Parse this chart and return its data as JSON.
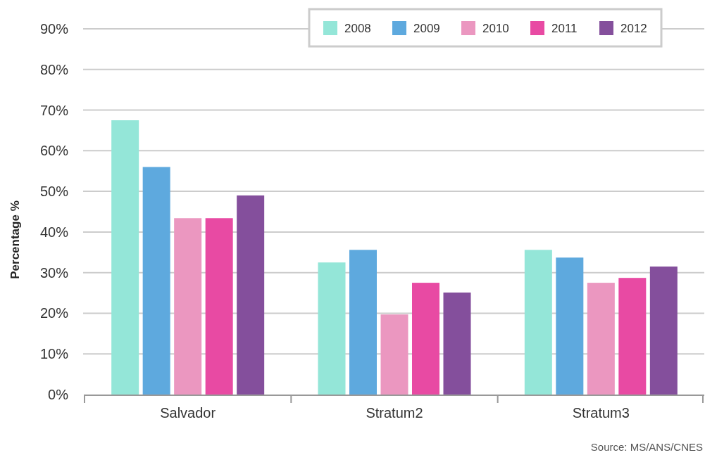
{
  "chart_data": {
    "type": "bar",
    "ylabel": "Percentage %",
    "categories": [
      "Salvador",
      "Stratum2",
      "Stratum3"
    ],
    "series": [
      {
        "name": "2008",
        "color": "#94e6d8",
        "values": [
          67.5,
          32.5,
          35.6
        ]
      },
      {
        "name": "2009",
        "color": "#5ea9de",
        "values": [
          56,
          35.6,
          33.7
        ]
      },
      {
        "name": "2010",
        "color": "#eb97c0",
        "values": [
          43.4,
          19.7,
          27.5
        ]
      },
      {
        "name": "2011",
        "color": "#e84aa3",
        "values": [
          43.4,
          27.5,
          28.7
        ]
      },
      {
        "name": "2012",
        "color": "#844f9c",
        "values": [
          49,
          25.1,
          31.5
        ]
      }
    ],
    "ylim": [
      0,
      90
    ],
    "yticks": [
      {
        "value": 0,
        "label": "0%"
      },
      {
        "value": 10,
        "label": "10%"
      },
      {
        "value": 20,
        "label": "20%"
      },
      {
        "value": 30,
        "label": "30%"
      },
      {
        "value": 40,
        "label": "40%"
      },
      {
        "value": 50,
        "label": "50%"
      },
      {
        "value": 60,
        "label": "60%"
      },
      {
        "value": 70,
        "label": "70%"
      },
      {
        "value": 80,
        "label": "80%"
      },
      {
        "value": 90,
        "label": "90%"
      }
    ],
    "grid": "y",
    "legend": "top",
    "annotations": [
      "Source: MS/ANS/CNES"
    ]
  }
}
